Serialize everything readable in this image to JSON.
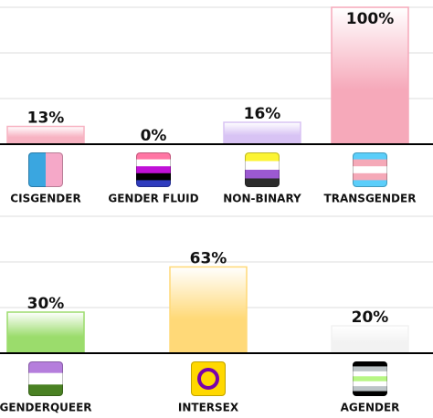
{
  "chart_data": [
    {
      "type": "bar",
      "categories": [
        "CISGENDER",
        "GENDER FLUID",
        "NON-BINARY",
        "TRANSGENDER"
      ],
      "values": [
        13,
        0,
        16,
        100
      ],
      "value_labels": [
        "13%",
        "0%",
        "16%",
        "100%"
      ],
      "colors": [
        "#f7b3c2",
        "#e0e0e0",
        "#d8c3f4",
        "#f6a9ba"
      ],
      "ylim": [
        0,
        100
      ],
      "yticks": [
        0,
        33.3,
        66.7,
        100
      ],
      "grid": true
    },
    {
      "type": "bar",
      "categories": [
        "GENDERQUEER",
        "INTERSEX",
        "AGENDER"
      ],
      "values": [
        30,
        63,
        20
      ],
      "value_labels": [
        "30%",
        "63%",
        "20%"
      ],
      "colors": [
        "#9bdc6c",
        "#ffd978",
        "#f2f2f2"
      ],
      "ylim": [
        0,
        100
      ],
      "yticks": [
        0,
        33.3,
        66.7,
        100
      ],
      "grid": true
    }
  ]
}
